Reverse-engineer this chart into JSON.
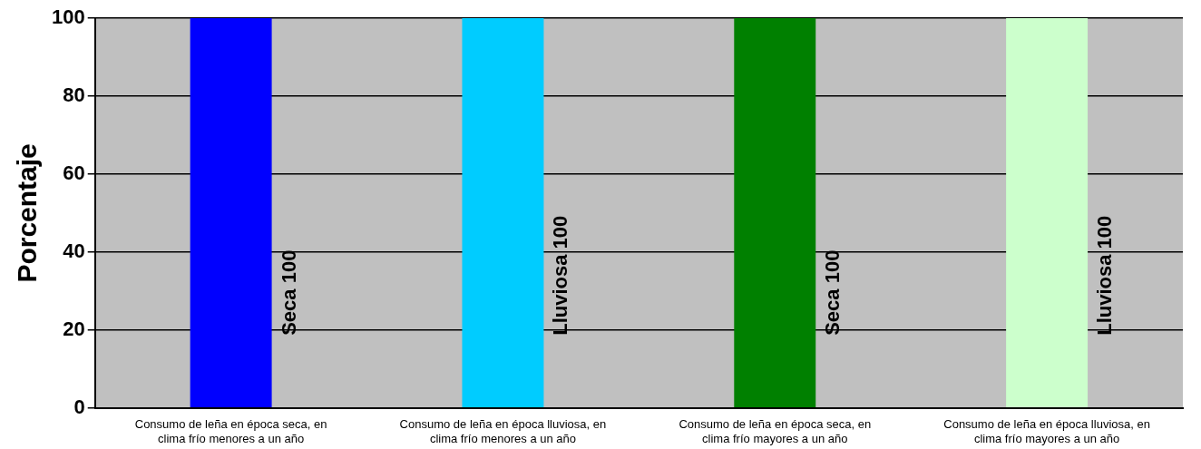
{
  "chart_data": {
    "type": "bar",
    "ylabel": "Porcentaje",
    "categories": [
      "Consumo de leña en época seca, en clima frío menores a un año",
      "Consumo de leña en época lluviosa, en clima frío menores a un año",
      "Consumo de leña en época seca, en clima frío mayores a un año",
      "Consumo de leña en época lluviosa, en clima frío mayores a un año"
    ],
    "values": [
      100,
      100,
      100,
      100
    ],
    "colors": [
      "#0000ff",
      "#00ccff",
      "#008000",
      "#ccffcc"
    ],
    "value_labels": [
      "Seca 100",
      "Lluviosa 100",
      "Seca 100",
      "Lluviosa 100"
    ],
    "ylim": [
      0,
      100
    ],
    "yticks": [
      0,
      20,
      40,
      60,
      80,
      100
    ],
    "grid": "y",
    "legend": false
  }
}
